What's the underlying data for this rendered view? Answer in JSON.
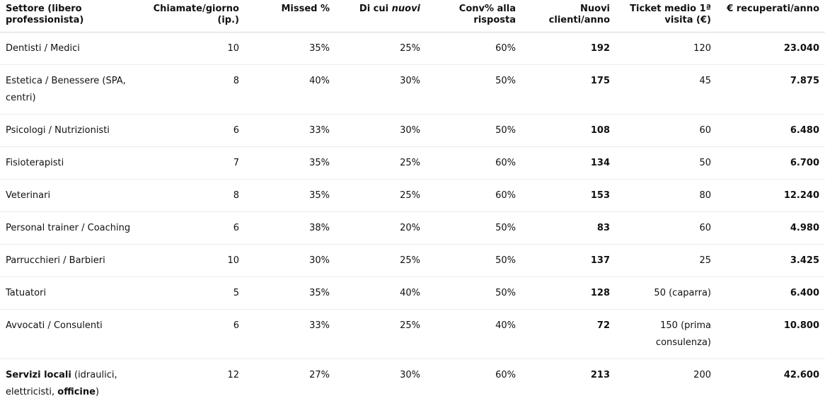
{
  "table": {
    "headers": {
      "settore": "Settore (libero professionista)",
      "chiamate": "Chiamate/giorno (ip.)",
      "missed": "Missed %",
      "dicui_prefix": "Di cui ",
      "dicui_em": "nuovi",
      "conv": "Conv% alla risposta",
      "nuovi": "Nuovi clienti/anno",
      "ticket": "Ticket medio 1ª visita (€)",
      "recuperati": "€ recuperati/anno"
    },
    "rows": [
      {
        "settore": "Dentisti / Medici",
        "chiamate": "10",
        "missed": "35%",
        "nuovi_pct": "25%",
        "conv": "60%",
        "clienti": "192",
        "ticket": "120",
        "euro": "23.040"
      },
      {
        "settore": "Estetica / Benessere (SPA, centri)",
        "chiamate": "8",
        "missed": "40%",
        "nuovi_pct": "30%",
        "conv": "50%",
        "clienti": "175",
        "ticket": "45",
        "euro": "7.875"
      },
      {
        "settore": "Psicologi / Nutrizionisti",
        "chiamate": "6",
        "missed": "33%",
        "nuovi_pct": "30%",
        "conv": "50%",
        "clienti": "108",
        "ticket": "60",
        "euro": "6.480"
      },
      {
        "settore": "Fisioterapisti",
        "chiamate": "7",
        "missed": "35%",
        "nuovi_pct": "25%",
        "conv": "60%",
        "clienti": "134",
        "ticket": "50",
        "euro": "6.700"
      },
      {
        "settore": "Veterinari",
        "chiamate": "8",
        "missed": "35%",
        "nuovi_pct": "25%",
        "conv": "60%",
        "clienti": "153",
        "ticket": "80",
        "euro": "12.240"
      },
      {
        "settore": "Personal trainer / Coaching",
        "chiamate": "6",
        "missed": "38%",
        "nuovi_pct": "20%",
        "conv": "50%",
        "clienti": "83",
        "ticket": "60",
        "euro": "4.980"
      },
      {
        "settore": "Parrucchieri / Barbieri",
        "chiamate": "10",
        "missed": "30%",
        "nuovi_pct": "25%",
        "conv": "50%",
        "clienti": "137",
        "ticket": "25",
        "euro": "3.425"
      },
      {
        "settore": "Tatuatori",
        "chiamate": "5",
        "missed": "35%",
        "nuovi_pct": "40%",
        "conv": "50%",
        "clienti": "128",
        "ticket": "50 (caparra)",
        "euro": "6.400"
      },
      {
        "settore": "Avvocati / Consulenti",
        "chiamate": "6",
        "missed": "33%",
        "nuovi_pct": "25%",
        "conv": "40%",
        "clienti": "72",
        "ticket": "150 (prima consulenza)",
        "euro": "10.800"
      }
    ],
    "last_row": {
      "settore_bold1": "Servizi locali",
      "settore_normal1": " (idraulici, elettricisti, ",
      "settore_bold2": "officine",
      "settore_normal2": ")",
      "chiamate": "12",
      "missed": "27%",
      "nuovi_pct": "30%",
      "conv": "60%",
      "clienti": "213",
      "ticket": "200",
      "euro": "42.600"
    }
  }
}
